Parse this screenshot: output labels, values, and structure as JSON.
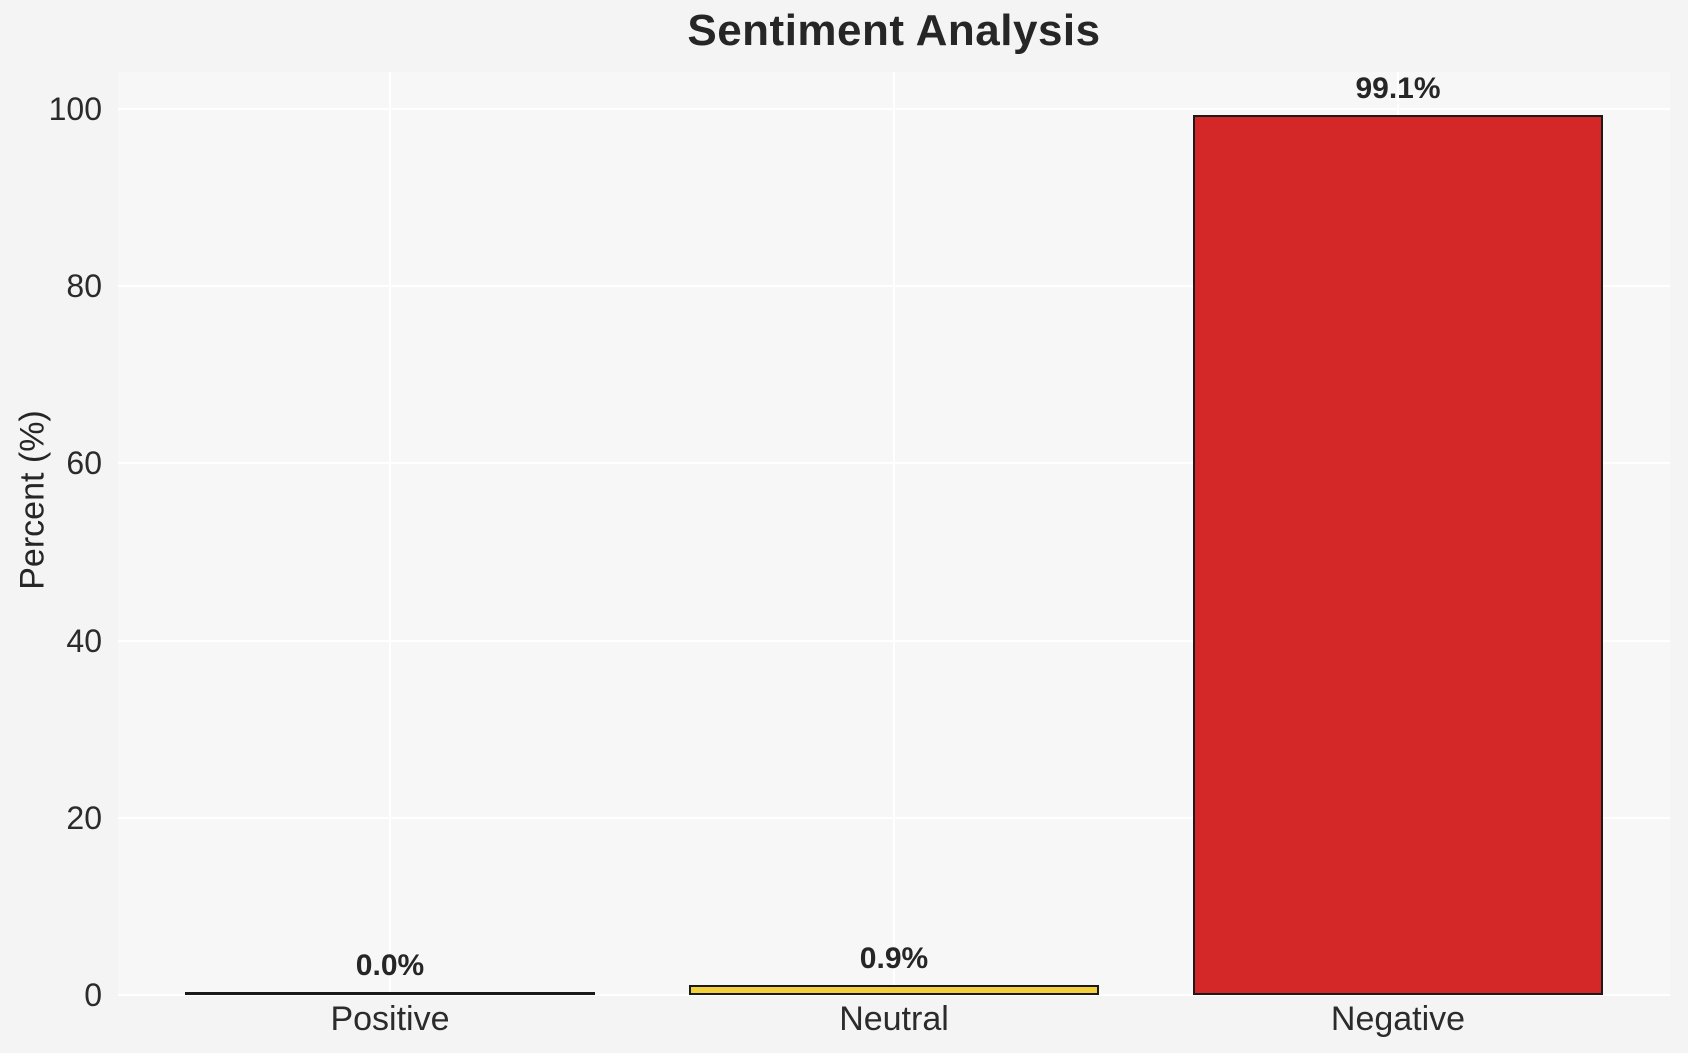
{
  "chart_data": {
    "type": "bar",
    "title": "Sentiment Analysis",
    "xlabel": "",
    "ylabel": "Percent (%)",
    "categories": [
      "Positive",
      "Neutral",
      "Negative"
    ],
    "values": [
      0.0,
      0.9,
      99.1
    ],
    "value_labels": [
      "0.0%",
      "0.9%",
      "99.1%"
    ],
    "y_ticks": [
      0,
      20,
      40,
      60,
      80,
      100
    ],
    "ylim": [
      0,
      100
    ],
    "grid": true,
    "legend_position": "none",
    "bar_fill_colors": [
      null,
      "#f3cf3b",
      "#d32728"
    ],
    "bar_edge_color": "#1a1a1a",
    "colors": {
      "figure_background": "#f4f4f5",
      "axes_background": "#f7f7f8",
      "gridline": "#ffffff",
      "text": "#262626"
    }
  }
}
